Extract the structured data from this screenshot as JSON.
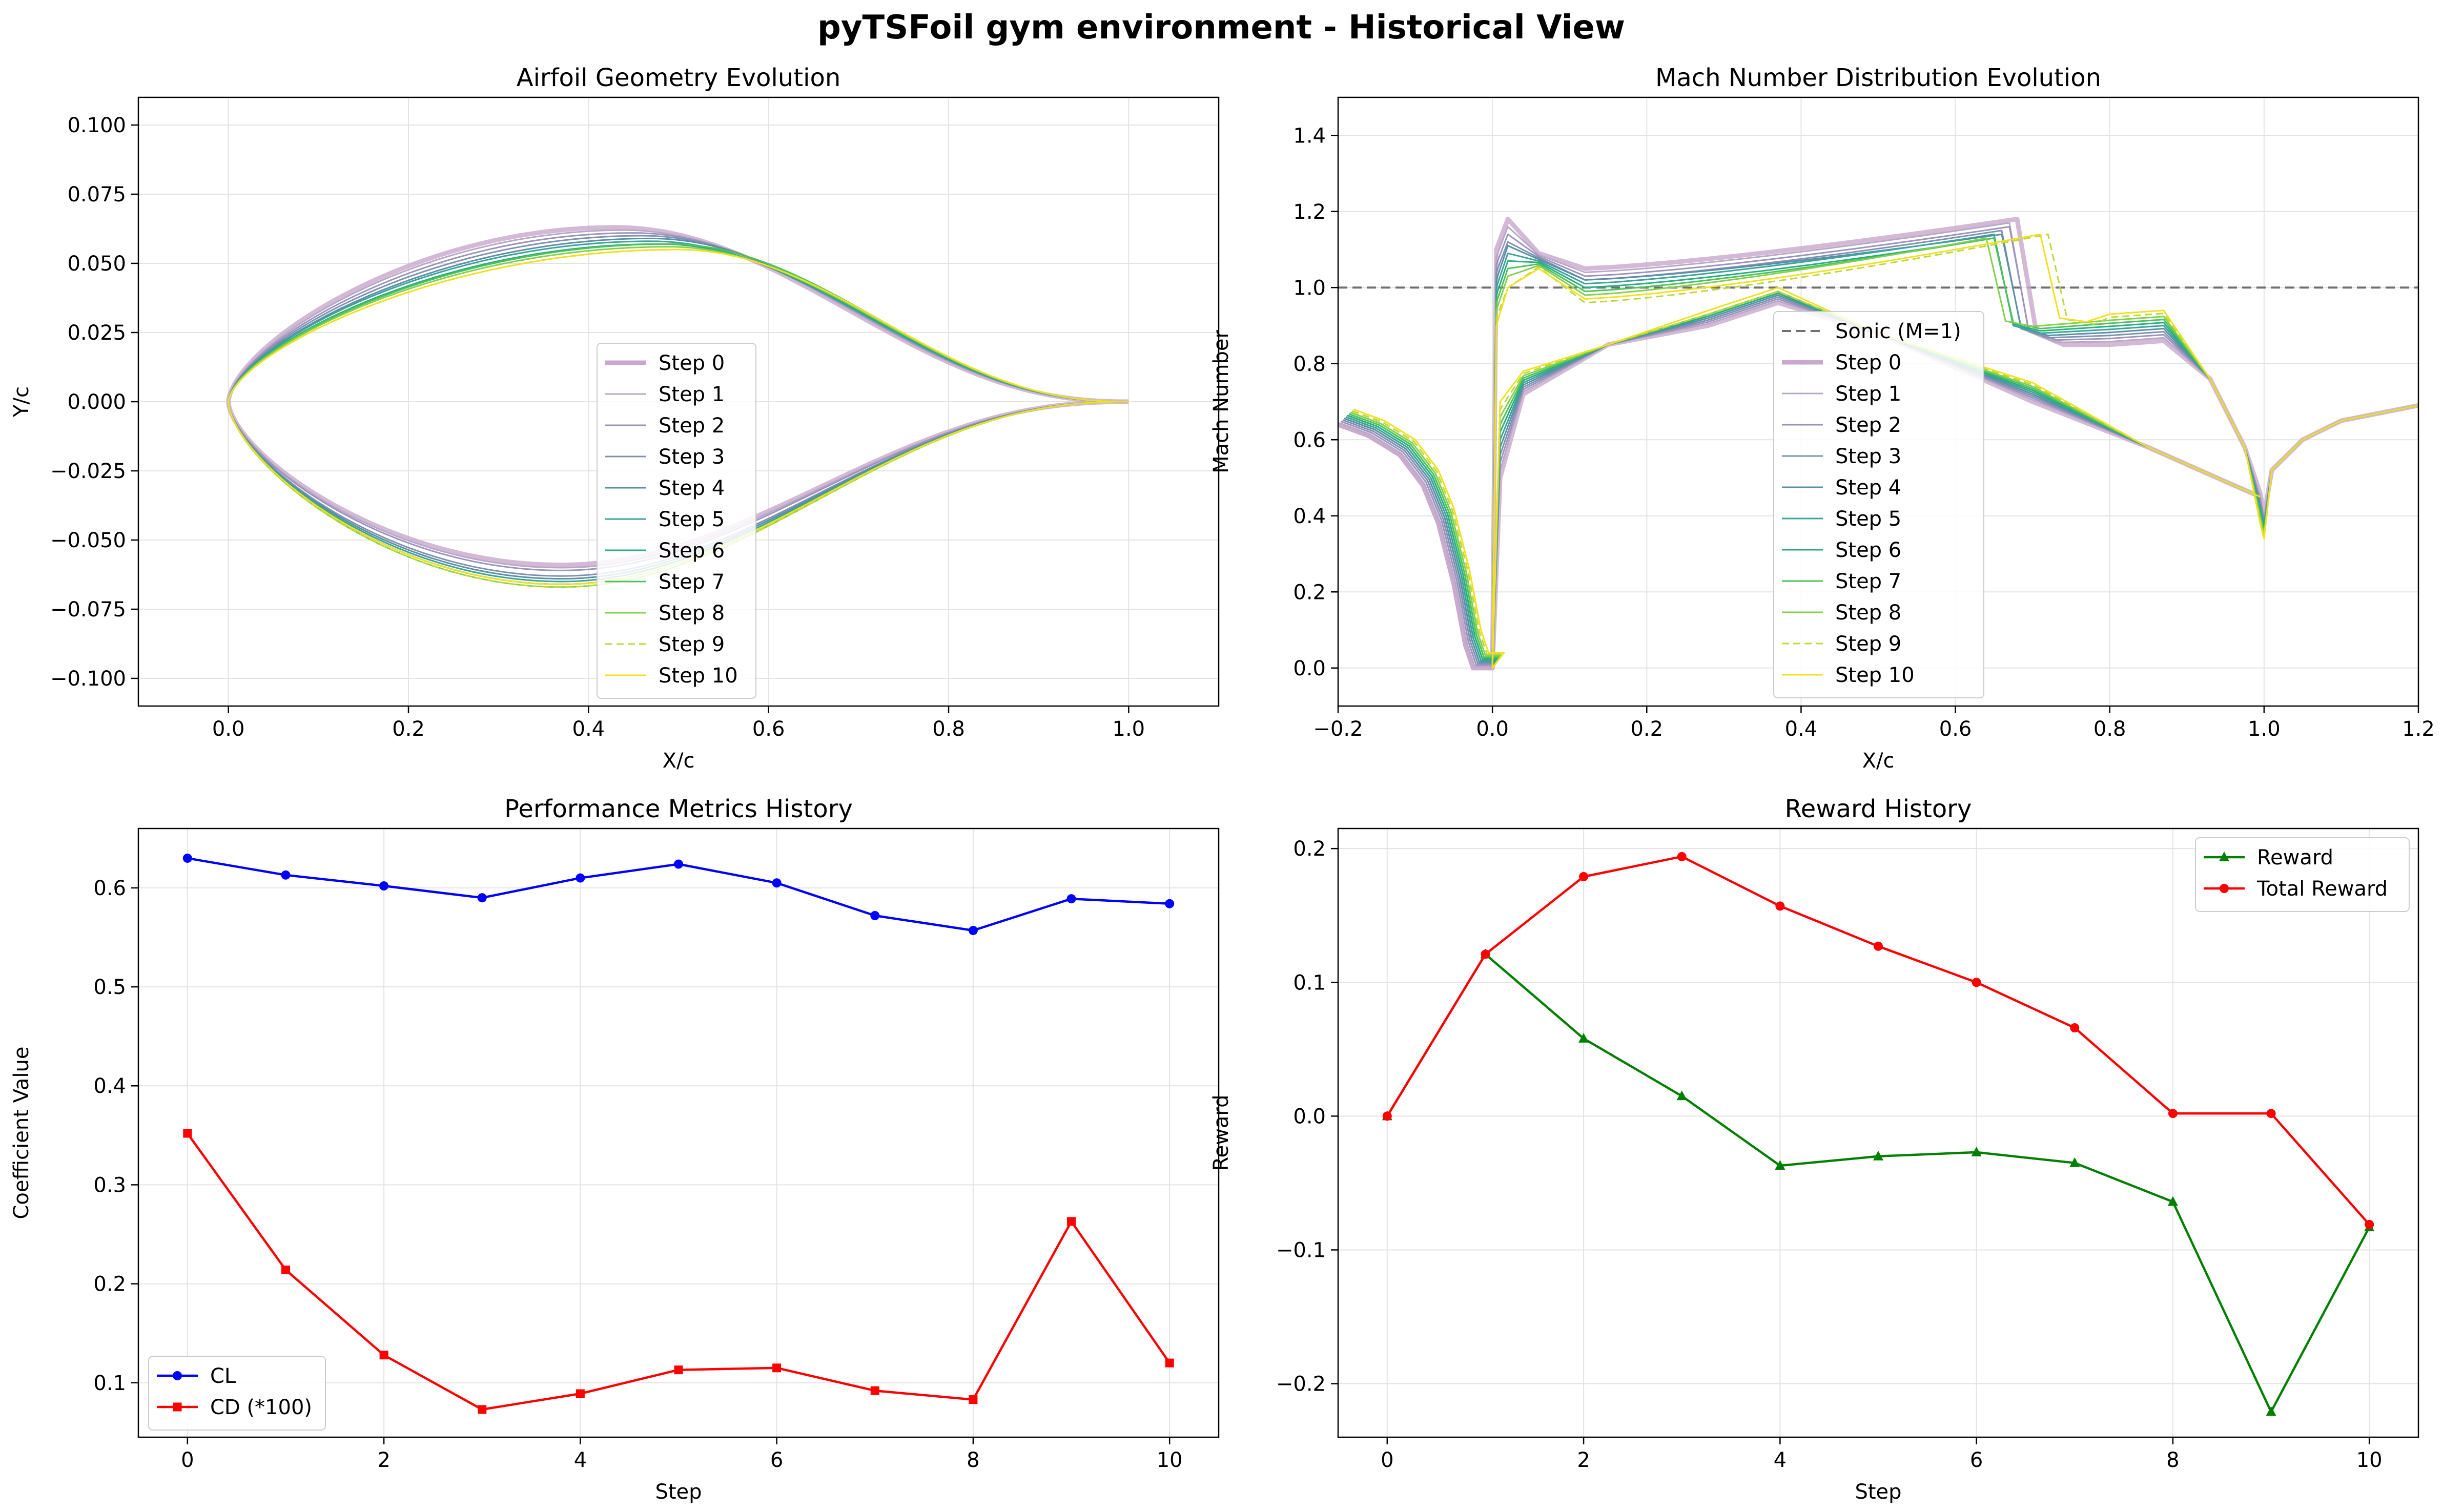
{
  "figure": {
    "title": "pyTSFoil gym environment - Historical View"
  },
  "chart_data": [
    {
      "id": "geometry",
      "type": "line",
      "title": "Airfoil Geometry Evolution",
      "xlabel": "X/c",
      "ylabel": "Y/c",
      "xlim": [
        -0.1,
        1.1
      ],
      "ylim": [
        -0.11,
        0.11
      ],
      "xticks": [
        0.0,
        0.2,
        0.4,
        0.6,
        0.8,
        1.0
      ],
      "xtick_labels": [
        "0.0",
        "0.2",
        "0.4",
        "0.6",
        "0.8",
        "1.0"
      ],
      "yticks": [
        -0.1,
        -0.075,
        -0.05,
        -0.025,
        0.0,
        0.025,
        0.05,
        0.075,
        0.1
      ],
      "ytick_labels": [
        "−0.100",
        "−0.075",
        "−0.050",
        "−0.025",
        "0.000",
        "0.025",
        "0.050",
        "0.075",
        "0.100"
      ],
      "grid": true,
      "legend_position": "center-right",
      "series": [
        {
          "name": "Step 0",
          "color": "#c8a8cc",
          "max_upper": 0.063,
          "max_upper_x": 0.43,
          "min_lower": -0.059,
          "min_lower_x": 0.37
        },
        {
          "name": "Step 1",
          "color": "#b8a8c8",
          "max_upper": 0.062,
          "max_upper_x": 0.44,
          "min_lower": -0.06,
          "min_lower_x": 0.37
        },
        {
          "name": "Step 2",
          "color": "#9c92bd",
          "max_upper": 0.061,
          "max_upper_x": 0.45,
          "min_lower": -0.061,
          "min_lower_x": 0.37
        },
        {
          "name": "Step 3",
          "color": "#7d92b0",
          "max_upper": 0.06,
          "max_upper_x": 0.46,
          "min_lower": -0.063,
          "min_lower_x": 0.37
        },
        {
          "name": "Step 4",
          "color": "#5c8ea6",
          "max_upper": 0.059,
          "max_upper_x": 0.47,
          "min_lower": -0.064,
          "min_lower_x": 0.37
        },
        {
          "name": "Step 5",
          "color": "#3aa39a",
          "max_upper": 0.058,
          "max_upper_x": 0.47,
          "min_lower": -0.065,
          "min_lower_x": 0.37
        },
        {
          "name": "Step 6",
          "color": "#28ae80",
          "max_upper": 0.057,
          "max_upper_x": 0.48,
          "min_lower": -0.066,
          "min_lower_x": 0.37
        },
        {
          "name": "Step 7",
          "color": "#4ec25a",
          "max_upper": 0.057,
          "max_upper_x": 0.49,
          "min_lower": -0.066,
          "min_lower_x": 0.37
        },
        {
          "name": "Step 8",
          "color": "#82d04b",
          "max_upper": 0.056,
          "max_upper_x": 0.49,
          "min_lower": -0.067,
          "min_lower_x": 0.37
        },
        {
          "name": "Step 9",
          "color": "#bcd83a",
          "dashed": true,
          "max_upper": 0.055,
          "max_upper_x": 0.5,
          "min_lower": -0.067,
          "min_lower_x": 0.37
        },
        {
          "name": "Step 10",
          "color": "#f0e01e",
          "max_upper": 0.055,
          "max_upper_x": 0.5,
          "min_lower": -0.066,
          "min_lower_x": 0.37
        }
      ]
    },
    {
      "id": "mach",
      "type": "line",
      "title": "Mach Number Distribution Evolution",
      "xlabel": "X/c",
      "ylabel": "Mach Number",
      "xlim": [
        -0.2,
        1.2
      ],
      "ylim": [
        -0.1,
        1.5
      ],
      "xticks": [
        -0.2,
        0.0,
        0.2,
        0.4,
        0.6,
        0.8,
        1.0,
        1.2
      ],
      "xtick_labels": [
        "−0.2",
        "0.0",
        "0.2",
        "0.4",
        "0.6",
        "0.8",
        "1.0",
        "1.2"
      ],
      "yticks": [
        0.0,
        0.2,
        0.4,
        0.6,
        0.8,
        1.0,
        1.2,
        1.4
      ],
      "ytick_labels": [
        "0.0",
        "0.2",
        "0.4",
        "0.6",
        "0.8",
        "1.0",
        "1.2",
        "1.4"
      ],
      "grid": true,
      "legend_position": "center-right",
      "reference_line": {
        "name": "Sonic (M=1)",
        "y": 1.0,
        "color": "#707070"
      },
      "series": [
        {
          "name": "Step 0",
          "color": "#c8a8cc",
          "shock_x": 0.69,
          "plateau_start": 1.05,
          "plateau_end": 1.18,
          "lower_peak": 0.96
        },
        {
          "name": "Step 1",
          "color": "#b8a8c8",
          "shock_x": 0.68,
          "plateau_start": 1.04,
          "plateau_end": 1.17,
          "lower_peak": 0.965
        },
        {
          "name": "Step 2",
          "color": "#9c92bd",
          "shock_x": 0.68,
          "plateau_start": 1.03,
          "plateau_end": 1.16,
          "lower_peak": 0.97
        },
        {
          "name": "Step 3",
          "color": "#7d92b0",
          "shock_x": 0.67,
          "plateau_start": 1.02,
          "plateau_end": 1.15,
          "lower_peak": 0.975
        },
        {
          "name": "Step 4",
          "color": "#5c8ea6",
          "shock_x": 0.67,
          "plateau_start": 1.02,
          "plateau_end": 1.14,
          "lower_peak": 0.98
        },
        {
          "name": "Step 5",
          "color": "#3aa39a",
          "shock_x": 0.66,
          "plateau_start": 1.01,
          "plateau_end": 1.14,
          "lower_peak": 0.985
        },
        {
          "name": "Step 6",
          "color": "#28ae80",
          "shock_x": 0.66,
          "plateau_start": 1.0,
          "plateau_end": 1.13,
          "lower_peak": 0.985
        },
        {
          "name": "Step 7",
          "color": "#4ec25a",
          "shock_x": 0.66,
          "plateau_start": 0.99,
          "plateau_end": 1.13,
          "lower_peak": 0.99
        },
        {
          "name": "Step 8",
          "color": "#82d04b",
          "shock_x": 0.65,
          "plateau_start": 0.98,
          "plateau_end": 1.13,
          "lower_peak": 0.99
        },
        {
          "name": "Step 9",
          "color": "#bcd83a",
          "dashed": true,
          "shock_x": 0.73,
          "plateau_start": 0.96,
          "plateau_end": 1.14,
          "lower_peak": 0.99
        },
        {
          "name": "Step 10",
          "color": "#f0e01e",
          "shock_x": 0.72,
          "plateau_start": 0.97,
          "plateau_end": 1.14,
          "lower_peak": 1.0
        }
      ]
    },
    {
      "id": "performance",
      "type": "line",
      "title": "Performance Metrics History",
      "xlabel": "Step",
      "ylabel": "Coefficient Value",
      "xlim": [
        -0.5,
        10.5
      ],
      "ylim": [
        0.045,
        0.66
      ],
      "xticks": [
        0,
        2,
        4,
        6,
        8,
        10
      ],
      "xtick_labels": [
        "0",
        "2",
        "4",
        "6",
        "8",
        "10"
      ],
      "yticks": [
        0.1,
        0.2,
        0.3,
        0.4,
        0.5,
        0.6
      ],
      "ytick_labels": [
        "0.1",
        "0.2",
        "0.3",
        "0.4",
        "0.5",
        "0.6"
      ],
      "grid": true,
      "legend_position": "lower-left",
      "x": [
        0,
        1,
        2,
        3,
        4,
        5,
        6,
        7,
        8,
        9,
        10
      ],
      "series": [
        {
          "name": "CL",
          "color": "#0000ff",
          "marker": "circle",
          "values": [
            0.63,
            0.613,
            0.602,
            0.59,
            0.61,
            0.624,
            0.605,
            0.572,
            0.557,
            0.589,
            0.584
          ]
        },
        {
          "name": "CD (*100)",
          "color": "#ff0000",
          "marker": "square",
          "values": [
            0.352,
            0.214,
            0.128,
            0.073,
            0.089,
            0.113,
            0.115,
            0.092,
            0.083,
            0.263,
            0.12
          ]
        }
      ]
    },
    {
      "id": "reward",
      "type": "line",
      "title": "Reward History",
      "xlabel": "Step",
      "ylabel": "Reward",
      "xlim": [
        -0.5,
        10.5
      ],
      "ylim": [
        -0.24,
        0.215
      ],
      "xticks": [
        0,
        2,
        4,
        6,
        8,
        10
      ],
      "xtick_labels": [
        "0",
        "2",
        "4",
        "6",
        "8",
        "10"
      ],
      "yticks": [
        -0.2,
        -0.1,
        0.0,
        0.1,
        0.2
      ],
      "ytick_labels": [
        "−0.2",
        "−0.1",
        "0.0",
        "0.1",
        "0.2"
      ],
      "grid": true,
      "legend_position": "upper-right",
      "x": [
        0,
        1,
        2,
        3,
        4,
        5,
        6,
        7,
        8,
        9,
        10
      ],
      "series": [
        {
          "name": "Reward",
          "color": "#008000",
          "marker": "triangle",
          "values": [
            0.0,
            0.121,
            0.058,
            0.015,
            -0.037,
            -0.03,
            -0.027,
            -0.035,
            -0.064,
            -0.221,
            -0.083
          ]
        },
        {
          "name": "Total Reward",
          "color": "#ff0000",
          "marker": "circle",
          "values": [
            0.0,
            0.121,
            0.179,
            0.194,
            0.157,
            0.127,
            0.1,
            0.066,
            0.002,
            0.002,
            -0.081
          ]
        }
      ]
    }
  ]
}
